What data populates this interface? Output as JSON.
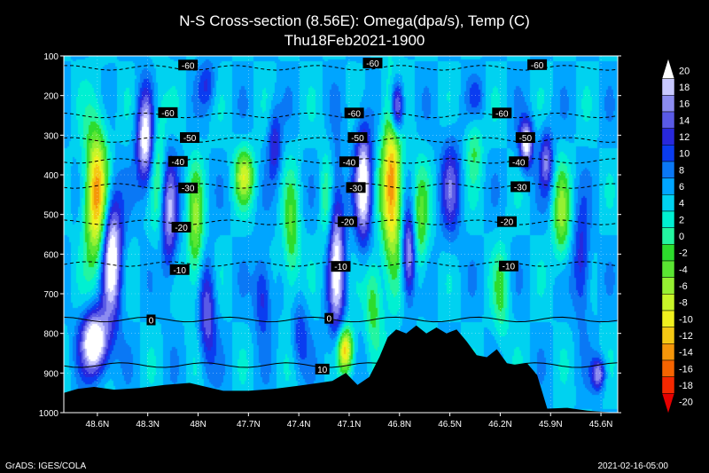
{
  "chart_data": {
    "type": "heatmap",
    "title": "N-S Cross-section (8.56E): Omega(dpa/s), Temp (C)",
    "subtitle": "Thu18Feb2021-1900",
    "y_axis": {
      "ticks": [
        100,
        200,
        300,
        400,
        500,
        600,
        700,
        800,
        900,
        1000
      ],
      "lim": [
        100,
        1000
      ],
      "inverted": true
    },
    "x_axis": {
      "ticks": [
        "48.6N",
        "48.3N",
        "48N",
        "47.7N",
        "47.4N",
        "47.1N",
        "46.8N",
        "46.5N",
        "46.2N",
        "45.9N",
        "45.6N"
      ],
      "lim": [
        48.8,
        45.5
      ]
    },
    "colorbar": {
      "levels": [
        20,
        18,
        16,
        14,
        12,
        10,
        8,
        6,
        4,
        2,
        0,
        -2,
        -4,
        -6,
        -8,
        -10,
        -12,
        -14,
        -16,
        -18,
        -20
      ],
      "colors": [
        "#ffffff",
        "#c8c8ff",
        "#8c8cf0",
        "#5a5ae6",
        "#2828dc",
        "#0a3cf0",
        "#0a78f5",
        "#00a5ff",
        "#00d2f0",
        "#00f0d2",
        "#23f5a0",
        "#2ddc2d",
        "#5ae632",
        "#96f032",
        "#c8f528",
        "#f0f01e",
        "#f5c814",
        "#f5960a",
        "#f56400",
        "#f52800",
        "#e60000"
      ]
    },
    "temperature_contours": [
      {
        "value": -60,
        "p": [
          130,
          250
        ]
      },
      {
        "value": -50,
        "p": [
          312
        ]
      },
      {
        "value": -40,
        "p": [
          365
        ]
      },
      {
        "value": -30,
        "p": [
          428
        ]
      },
      {
        "value": -20,
        "p": [
          520
        ]
      },
      {
        "value": -10,
        "p": [
          625
        ]
      },
      {
        "value": 0,
        "p": [
          765
        ]
      },
      {
        "value": 10,
        "p": [
          880
        ]
      }
    ],
    "contour_labels": [
      {
        "text": "-60",
        "lat": 48.06,
        "p": 123
      },
      {
        "text": "-60",
        "lat": 46.96,
        "p": 118
      },
      {
        "text": "-60",
        "lat": 45.98,
        "p": 122
      },
      {
        "text": "-60",
        "lat": 48.18,
        "p": 243
      },
      {
        "text": "-60",
        "lat": 47.07,
        "p": 244
      },
      {
        "text": "-60",
        "lat": 46.19,
        "p": 244
      },
      {
        "text": "-50",
        "lat": 48.05,
        "p": 306
      },
      {
        "text": "-50",
        "lat": 47.05,
        "p": 306
      },
      {
        "text": "-50",
        "lat": 46.05,
        "p": 306
      },
      {
        "text": "-40",
        "lat": 48.12,
        "p": 366
      },
      {
        "text": "-40",
        "lat": 47.1,
        "p": 367
      },
      {
        "text": "-40",
        "lat": 46.09,
        "p": 367
      },
      {
        "text": "-30",
        "lat": 48.06,
        "p": 433
      },
      {
        "text": "-30",
        "lat": 47.06,
        "p": 432
      },
      {
        "text": "-30",
        "lat": 46.08,
        "p": 430
      },
      {
        "text": "-20",
        "lat": 48.1,
        "p": 532
      },
      {
        "text": "-20",
        "lat": 47.11,
        "p": 518
      },
      {
        "text": "-20",
        "lat": 46.16,
        "p": 518
      },
      {
        "text": "-10",
        "lat": 48.11,
        "p": 639
      },
      {
        "text": "-10",
        "lat": 47.15,
        "p": 631
      },
      {
        "text": "-10",
        "lat": 46.15,
        "p": 630
      },
      {
        "text": "0",
        "lat": 48.28,
        "p": 766
      },
      {
        "text": "0",
        "lat": 47.22,
        "p": 762
      },
      {
        "text": "10",
        "lat": 47.26,
        "p": 890
      }
    ],
    "terrain_surface_pressure": [
      [
        48.8,
        950
      ],
      [
        48.72,
        940
      ],
      [
        48.62,
        935
      ],
      [
        48.5,
        942
      ],
      [
        48.35,
        938
      ],
      [
        48.2,
        930
      ],
      [
        48.05,
        925
      ],
      [
        47.95,
        935
      ],
      [
        47.85,
        945
      ],
      [
        47.7,
        945
      ],
      [
        47.55,
        940
      ],
      [
        47.4,
        932
      ],
      [
        47.28,
        925
      ],
      [
        47.2,
        920
      ],
      [
        47.12,
        900
      ],
      [
        47.05,
        930
      ],
      [
        46.98,
        910
      ],
      [
        46.92,
        860
      ],
      [
        46.87,
        810
      ],
      [
        46.82,
        790
      ],
      [
        46.76,
        800
      ],
      [
        46.7,
        780
      ],
      [
        46.64,
        800
      ],
      [
        46.58,
        785
      ],
      [
        46.52,
        800
      ],
      [
        46.46,
        790
      ],
      [
        46.4,
        820
      ],
      [
        46.34,
        855
      ],
      [
        46.28,
        860
      ],
      [
        46.22,
        840
      ],
      [
        46.16,
        875
      ],
      [
        46.1,
        880
      ],
      [
        46.04,
        875
      ],
      [
        45.98,
        905
      ],
      [
        45.92,
        990
      ],
      [
        45.8,
        988
      ],
      [
        45.68,
        995
      ],
      [
        45.58,
        998
      ],
      [
        45.5,
        1000
      ]
    ]
  },
  "footer": {
    "left": "GrADS: IGES/COLA",
    "right": "2021-02-16-05:00"
  }
}
